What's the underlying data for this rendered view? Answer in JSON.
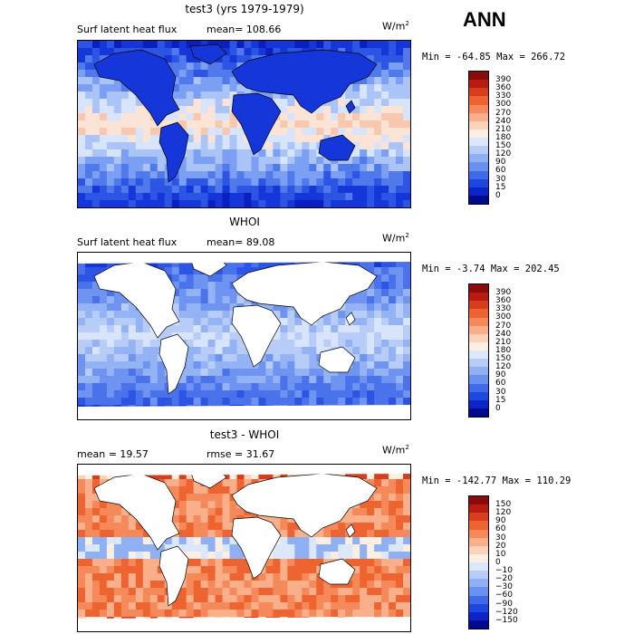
{
  "season": "ANN",
  "panels": [
    {
      "title": "test3 (yrs 1979-1979)",
      "variable": "Surf latent heat flux",
      "stat1": "mean=  108.66",
      "stat2": "",
      "units": "W/m",
      "units_sup": "2",
      "range": "Min =  -64.85  Max =  266.72",
      "colorbar": {
        "ticks": [
          "390",
          "360",
          "330",
          "300",
          "270",
          "240",
          "210",
          "180",
          "150",
          "120",
          "90",
          "60",
          "30",
          "15",
          "0"
        ],
        "colors": [
          "#8b0a0a",
          "#b81c10",
          "#d83d1c",
          "#ee6431",
          "#f5895a",
          "#f9b08a",
          "#fcd3b9",
          "#fbeee2",
          "#dbe7fa",
          "#b7cdf7",
          "#8fb0f2",
          "#6a91ef",
          "#3f6be8",
          "#1d47de",
          "#0b25c8",
          "#000a8c"
        ]
      },
      "palette": [
        "#0a1fbf",
        "#1536d8",
        "#2d55e3",
        "#5079eb",
        "#7a9ff3",
        "#aac4f8",
        "#d8e4fb",
        "#fbe4d6",
        "#f7c8ad"
      ]
    },
    {
      "title": "WHOI",
      "variable": "Surf latent heat flux",
      "stat1": "mean=   89.08",
      "stat2": "",
      "units": "W/m",
      "units_sup": "2",
      "range": "Min =   -3.74  Max =  202.45",
      "colorbar": {
        "ticks": [
          "390",
          "360",
          "330",
          "300",
          "270",
          "240",
          "210",
          "180",
          "150",
          "120",
          "90",
          "60",
          "30",
          "15",
          "0"
        ],
        "colors": [
          "#8b0a0a",
          "#b81c10",
          "#d83d1c",
          "#ee6431",
          "#f5895a",
          "#f9b08a",
          "#fcd3b9",
          "#fbeee2",
          "#dbe7fa",
          "#b7cdf7",
          "#8fb0f2",
          "#6a91ef",
          "#3f6be8",
          "#1d47de",
          "#0b25c8",
          "#000a8c"
        ]
      },
      "palette": [
        "#1536d8",
        "#2d55e3",
        "#4a72ea",
        "#6e93f0",
        "#93b3f4",
        "#b7cdf7",
        "#d8e4fb"
      ]
    },
    {
      "title": "test3 - WHOI",
      "variable": "",
      "stat1": "mean =   19.57",
      "stat2": "rmse =   31.67",
      "units": "W/m",
      "units_sup": "2",
      "range": "Min = -142.77  Max =  110.29",
      "colorbar": {
        "ticks": [
          "150",
          "120",
          "90",
          "60",
          "30",
          "20",
          "10",
          "0",
          "−10",
          "−20",
          "−30",
          "−60",
          "−90",
          "−120",
          "−150"
        ],
        "colors": [
          "#8b0a0a",
          "#b81c10",
          "#d83d1c",
          "#ee6431",
          "#f5895a",
          "#f9b08a",
          "#fcd3b9",
          "#fbeee2",
          "#dbe7fa",
          "#b7cdf7",
          "#8fb0f2",
          "#6a91ef",
          "#3f6be8",
          "#1d47de",
          "#0b25c8",
          "#000a8c"
        ]
      },
      "palette": [
        "#ee6431",
        "#f5895a",
        "#f9b08a",
        "#fcd3b9",
        "#d83d1c",
        "#fbeee2",
        "#dbe7fa",
        "#8fb0f2",
        "#3f6be8"
      ]
    }
  ]
}
